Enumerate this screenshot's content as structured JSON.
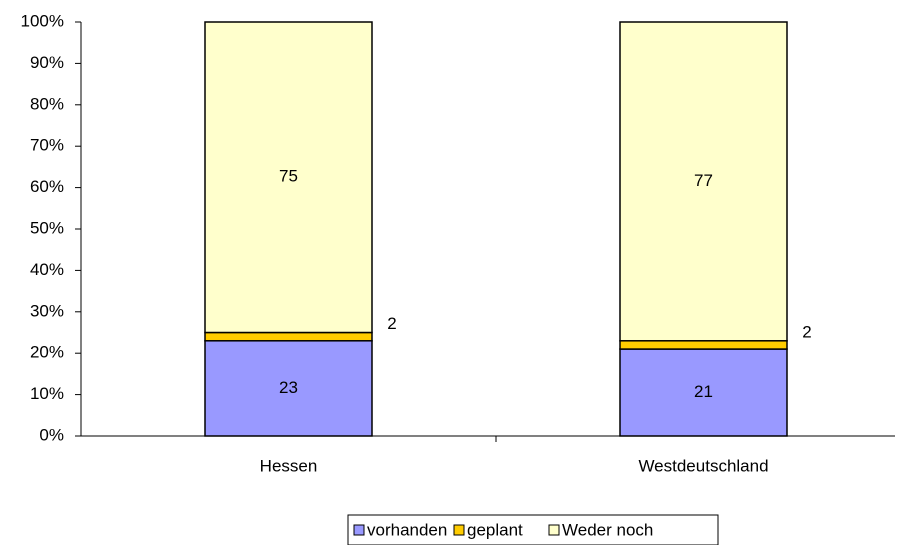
{
  "chart_data": {
    "type": "stacked_bar",
    "categories": [
      "Hessen",
      "Westdeutschland"
    ],
    "series": [
      {
        "name": "vorhanden",
        "color": "#9999ff",
        "values": [
          23,
          21
        ]
      },
      {
        "name": "geplant",
        "color": "#ffcc00",
        "values": [
          2,
          2
        ]
      },
      {
        "name": "Weder noch",
        "color": "#ffffcc",
        "values": [
          75,
          77
        ]
      }
    ],
    "ylim": [
      0,
      100
    ],
    "yticks": [
      {
        "value": 0,
        "label": "0%"
      },
      {
        "value": 10,
        "label": "10%"
      },
      {
        "value": 20,
        "label": "20%"
      },
      {
        "value": 30,
        "label": "30%"
      },
      {
        "value": 40,
        "label": "40%"
      },
      {
        "value": 50,
        "label": "50%"
      },
      {
        "value": 60,
        "label": "60%"
      },
      {
        "value": 70,
        "label": "70%"
      },
      {
        "value": 80,
        "label": "80%"
      },
      {
        "value": 90,
        "label": "90%"
      },
      {
        "value": 100,
        "label": "100%"
      }
    ],
    "legend": "bottom"
  }
}
